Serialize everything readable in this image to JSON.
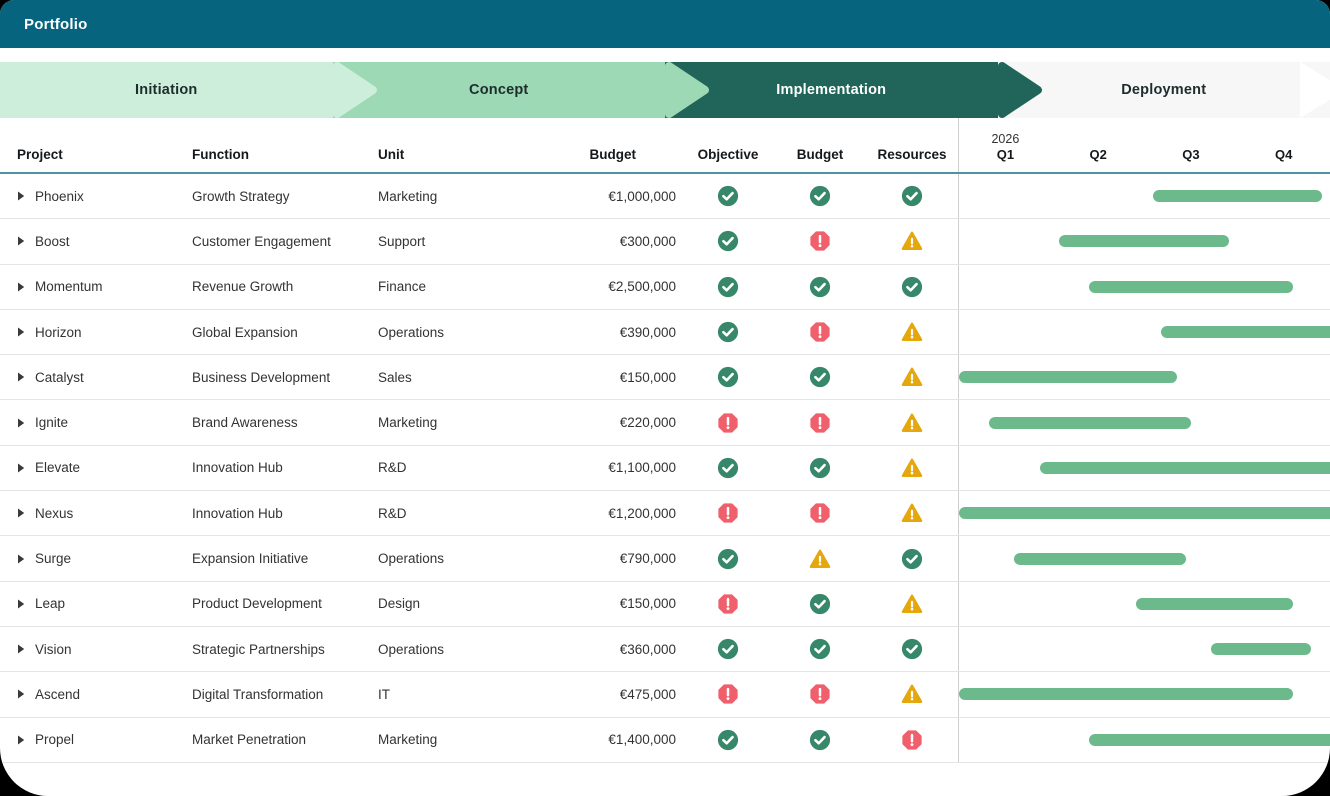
{
  "header": {
    "title": "Portfolio"
  },
  "phases": [
    {
      "label": "Initiation",
      "color": "#cdeeda",
      "text_color": "#1d2d2d"
    },
    {
      "label": "Concept",
      "color": "#9cd9b4",
      "text_color": "#1d2d2d"
    },
    {
      "label": "Implementation",
      "color": "#21655a",
      "text_color": "#ffffff"
    },
    {
      "label": "Deployment",
      "color": "#f7f7f7",
      "text_color": "#1d2d2d"
    }
  ],
  "table": {
    "columns": {
      "project": "Project",
      "function": "Function",
      "unit": "Unit",
      "budget": "Budget",
      "objective": "Objective",
      "budget_status": "Budget",
      "resources": "Resources"
    },
    "year": "2026",
    "quarters": [
      "Q1",
      "Q2",
      "Q3",
      "Q4"
    ],
    "rows": [
      {
        "project": "Phoenix",
        "function": "Growth Strategy",
        "unit": "Marketing",
        "budget": "€1,000,000",
        "objective": "ok",
        "budget_status": "ok",
        "resources": "ok",
        "bar": {
          "start_pct": 52.2,
          "end_pct": 97.8,
          "cut_end": false
        }
      },
      {
        "project": "Boost",
        "function": "Customer Engagement",
        "unit": "Support",
        "budget": "€300,000",
        "objective": "ok",
        "budget_status": "alert",
        "resources": "warn",
        "bar": {
          "start_pct": 27.0,
          "end_pct": 72.8,
          "cut_end": false
        }
      },
      {
        "project": "Momentum",
        "function": "Revenue Growth",
        "unit": "Finance",
        "budget": "€2,500,000",
        "objective": "ok",
        "budget_status": "ok",
        "resources": "ok",
        "bar": {
          "start_pct": 35.0,
          "end_pct": 90.0,
          "cut_end": false
        }
      },
      {
        "project": "Horizon",
        "function": "Global Expansion",
        "unit": "Operations",
        "budget": "€390,000",
        "objective": "ok",
        "budget_status": "alert",
        "resources": "warn",
        "bar": {
          "start_pct": 54.5,
          "end_pct": 100,
          "cut_end": true
        }
      },
      {
        "project": "Catalyst",
        "function": "Business Development",
        "unit": "Sales",
        "budget": "€150,000",
        "objective": "ok",
        "budget_status": "ok",
        "resources": "warn",
        "bar": {
          "start_pct": 0,
          "end_pct": 58.8,
          "cut_end": false
        }
      },
      {
        "project": "Ignite",
        "function": "Brand Awareness",
        "unit": "Marketing",
        "budget": "€220,000",
        "objective": "alert",
        "budget_status": "alert",
        "resources": "warn",
        "bar": {
          "start_pct": 8.2,
          "end_pct": 62.5,
          "cut_end": false
        }
      },
      {
        "project": "Elevate",
        "function": "Innovation Hub",
        "unit": "R&D",
        "budget": "€1,100,000",
        "objective": "ok",
        "budget_status": "ok",
        "resources": "warn",
        "bar": {
          "start_pct": 21.8,
          "end_pct": 100,
          "cut_end": true
        }
      },
      {
        "project": "Nexus",
        "function": "Innovation Hub",
        "unit": "R&D",
        "budget": "€1,200,000",
        "objective": "alert",
        "budget_status": "alert",
        "resources": "warn",
        "bar": {
          "start_pct": 0,
          "end_pct": 100,
          "cut_end": true
        }
      },
      {
        "project": "Surge",
        "function": "Expansion Initiative",
        "unit": "Operations",
        "budget": "€790,000",
        "objective": "ok",
        "budget_status": "warn",
        "resources": "ok",
        "bar": {
          "start_pct": 14.8,
          "end_pct": 61.3,
          "cut_end": false
        }
      },
      {
        "project": "Leap",
        "function": "Product Development",
        "unit": "Design",
        "budget": "€150,000",
        "objective": "alert",
        "budget_status": "ok",
        "resources": "warn",
        "bar": {
          "start_pct": 47.8,
          "end_pct": 90.0,
          "cut_end": false
        }
      },
      {
        "project": "Vision",
        "function": "Strategic Partnerships",
        "unit": "Operations",
        "budget": "€360,000",
        "objective": "ok",
        "budget_status": "ok",
        "resources": "ok",
        "bar": {
          "start_pct": 68.0,
          "end_pct": 94.8,
          "cut_end": false
        }
      },
      {
        "project": "Ascend",
        "function": "Digital Transformation",
        "unit": "IT",
        "budget": "€475,000",
        "objective": "alert",
        "budget_status": "alert",
        "resources": "warn",
        "bar": {
          "start_pct": 0,
          "end_pct": 90.0,
          "cut_end": false
        }
      },
      {
        "project": "Propel",
        "function": "Market Penetration",
        "unit": "Marketing",
        "budget": "€1,400,000",
        "objective": "ok",
        "budget_status": "ok",
        "resources": "alert",
        "bar": {
          "start_pct": 35.0,
          "end_pct": 100,
          "cut_end": true
        }
      }
    ]
  },
  "colors": {
    "topbar": "#06647e",
    "header_underline": "#4e93a4",
    "gantt_bar": "#6cba8b",
    "status_ok": "#37876a",
    "status_alert": "#f0606c",
    "status_warn": "#e5a70e",
    "row_border": "#e4e4e4",
    "divider": "#cfcfcf"
  }
}
